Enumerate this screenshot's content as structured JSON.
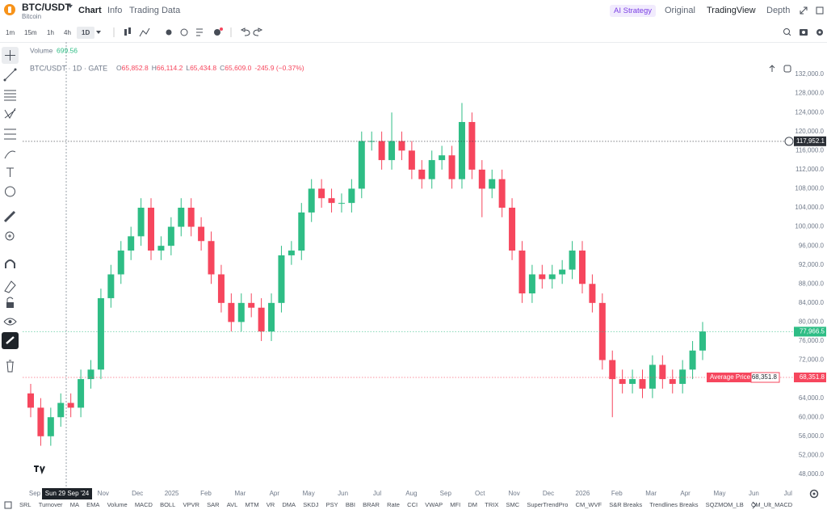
{
  "header": {
    "symbol": "BTC/USDT",
    "name": "Bitcoin",
    "tabs": [
      "Chart",
      "Info",
      "Trading Data"
    ],
    "views": [
      "AI Strategy",
      "Original",
      "TradingView",
      "Depth"
    ]
  },
  "toolbar": {
    "intervals": [
      "1m",
      "15m",
      "1h",
      "4h",
      "1D"
    ]
  },
  "legend": {
    "volume_label": "Volume",
    "volume_value": "699.56",
    "instrument": "BTC/USDT · 1D · GATE",
    "ohlc": [
      {
        "key": "O",
        "value": "65,852.8"
      },
      {
        "key": "H",
        "value": "66,114.2"
      },
      {
        "key": "L",
        "value": "65,434.8"
      },
      {
        "key": "C",
        "value": "65,609.0"
      }
    ],
    "change": "-245.9 (−0.37%)"
  },
  "crosshair": {
    "date": "Sun 29 Sep '24"
  },
  "indicators": [
    "SRL",
    "Turnover",
    "MA",
    "EMA",
    "Volume",
    "MACD",
    "BOLL",
    "VPVR",
    "SAR",
    "AVL",
    "MTM",
    "VR",
    "DMA",
    "SKDJ",
    "PSY",
    "BBI",
    "BRAR",
    "Rate",
    "CCI",
    "VWAP",
    "MFI",
    "DM",
    "TRIX",
    "SMC",
    "SuperTrendPro",
    "CM_WVF",
    "S&R Breaks",
    "Trendlines Breaks",
    "SQZMOM_LB",
    "CM_Ult_MACD"
  ],
  "chart_data": {
    "type": "candlestick",
    "up_color": "#2ebd85",
    "down_color": "#f6465d",
    "xticks": [
      "Sep",
      "Oct",
      "Nov",
      "Dec",
      "2025",
      "Feb",
      "Mar",
      "Apr",
      "May",
      "Jun",
      "Jul",
      "Aug",
      "Sep",
      "Oct",
      "Nov",
      "Dec",
      "2026",
      "Feb",
      "Mar",
      "Apr",
      "May",
      "Jun",
      "Jul"
    ],
    "ylim": [
      45100,
      138800
    ],
    "yticks": [
      {
        "value": 48000,
        "label": "48,000.0"
      },
      {
        "value": 52000,
        "label": "52,000.0"
      },
      {
        "value": 56000,
        "label": "56,000.0"
      },
      {
        "value": 60000,
        "label": "60,000.0"
      },
      {
        "value": 64000,
        "label": "64,000.0"
      },
      {
        "value": 68000,
        "label": "68,000.0"
      },
      {
        "value": 72000,
        "label": "72,000.0"
      },
      {
        "value": 76000,
        "label": "76,000.0"
      },
      {
        "value": 80000,
        "label": "80,000.0"
      },
      {
        "value": 84000,
        "label": "84,000.0"
      },
      {
        "value": 88000,
        "label": "88,000.0"
      },
      {
        "value": 92000,
        "label": "92,000.0"
      },
      {
        "value": 96000,
        "label": "96,000.0"
      },
      {
        "value": 100000,
        "label": "100,000.0"
      },
      {
        "value": 104000,
        "label": "104,000.0"
      },
      {
        "value": 108000,
        "label": "108,000.0"
      },
      {
        "value": 112000,
        "label": "112,000.0"
      },
      {
        "value": 116000,
        "label": "116,000.0"
      },
      {
        "value": 120000,
        "label": "120,000.0"
      },
      {
        "value": 124000,
        "label": "124,000.0"
      },
      {
        "value": 128000,
        "label": "128,000.0"
      },
      {
        "value": 132000,
        "label": "132,000.0"
      }
    ],
    "grid": false,
    "open": [
      65000,
      62000,
      56000,
      60000,
      63000,
      62000,
      68000,
      70000,
      85000,
      90000,
      95000,
      98000,
      104000,
      95000,
      96000,
      100000,
      104000,
      100000,
      97000,
      90000,
      84000,
      80000,
      84000,
      83000,
      78000,
      84000,
      94000,
      95000,
      103000,
      108000,
      106000,
      105000,
      105000,
      108000,
      118000,
      118000,
      114000,
      118000,
      116000,
      112000,
      110000,
      114000,
      115000,
      110000,
      122000,
      112000,
      108000,
      110000,
      104000,
      95000,
      86000,
      90000,
      89000,
      90000,
      91000,
      95000,
      88000,
      84000,
      72000,
      68000,
      67000,
      68000,
      66000,
      71000,
      68000,
      67000,
      70000,
      74000
    ],
    "high": [
      67000,
      64000,
      62000,
      65000,
      65000,
      70000,
      72000,
      87000,
      92000,
      97000,
      100000,
      106000,
      106000,
      98000,
      102000,
      106000,
      106000,
      102000,
      99000,
      92000,
      86000,
      86000,
      86000,
      85000,
      86000,
      96000,
      97000,
      105000,
      110000,
      110000,
      108000,
      107000,
      110000,
      120000,
      120000,
      120000,
      124000,
      120000,
      118000,
      114000,
      116000,
      117000,
      117000,
      126000,
      124000,
      114000,
      112000,
      112000,
      106000,
      97000,
      92000,
      92000,
      92000,
      93000,
      97000,
      97000,
      90000,
      86000,
      74000,
      70000,
      70000,
      70000,
      73000,
      73000,
      70000,
      72000,
      76000,
      80000
    ],
    "low": [
      60000,
      54000,
      54000,
      58000,
      60000,
      60000,
      66000,
      68000,
      83000,
      88000,
      93000,
      96000,
      93000,
      93000,
      94000,
      98000,
      98000,
      95000,
      88000,
      82000,
      78000,
      78000,
      81000,
      76000,
      76000,
      82000,
      92000,
      93000,
      101000,
      104000,
      103000,
      103000,
      103000,
      106000,
      116000,
      112000,
      112000,
      114000,
      110000,
      108000,
      108000,
      112000,
      108000,
      108000,
      110000,
      102000,
      106000,
      102000,
      93000,
      84000,
      84000,
      87000,
      87000,
      88000,
      89000,
      86000,
      82000,
      70000,
      60000,
      65000,
      65000,
      64000,
      64000,
      66000,
      65000,
      65000,
      68000,
      72000
    ],
    "close": [
      62000,
      56000,
      60000,
      63000,
      62000,
      68000,
      70000,
      85000,
      90000,
      95000,
      98000,
      104000,
      95000,
      96000,
      100000,
      104000,
      100000,
      97000,
      90000,
      84000,
      80000,
      84000,
      83000,
      78000,
      84000,
      94000,
      95000,
      103000,
      108000,
      106000,
      105000,
      105000,
      108000,
      118000,
      118000,
      114000,
      118000,
      116000,
      112000,
      110000,
      114000,
      115000,
      110000,
      122000,
      112000,
      108000,
      110000,
      104000,
      95000,
      86000,
      90000,
      89000,
      90000,
      91000,
      95000,
      88000,
      84000,
      72000,
      68000,
      67000,
      68000,
      66000,
      71000,
      68000,
      67000,
      70000,
      74000,
      78000
    ],
    "price_lines": [
      {
        "value": 117952.1,
        "label": "117,952.1",
        "color": "#2b2f36"
      },
      {
        "value": 77966.5,
        "label": "77,966.5",
        "color": "#2ebd85"
      },
      {
        "value": 68351.8,
        "label": "68,351.8",
        "color": "#f6465d",
        "tag": "Average Price"
      }
    ]
  }
}
